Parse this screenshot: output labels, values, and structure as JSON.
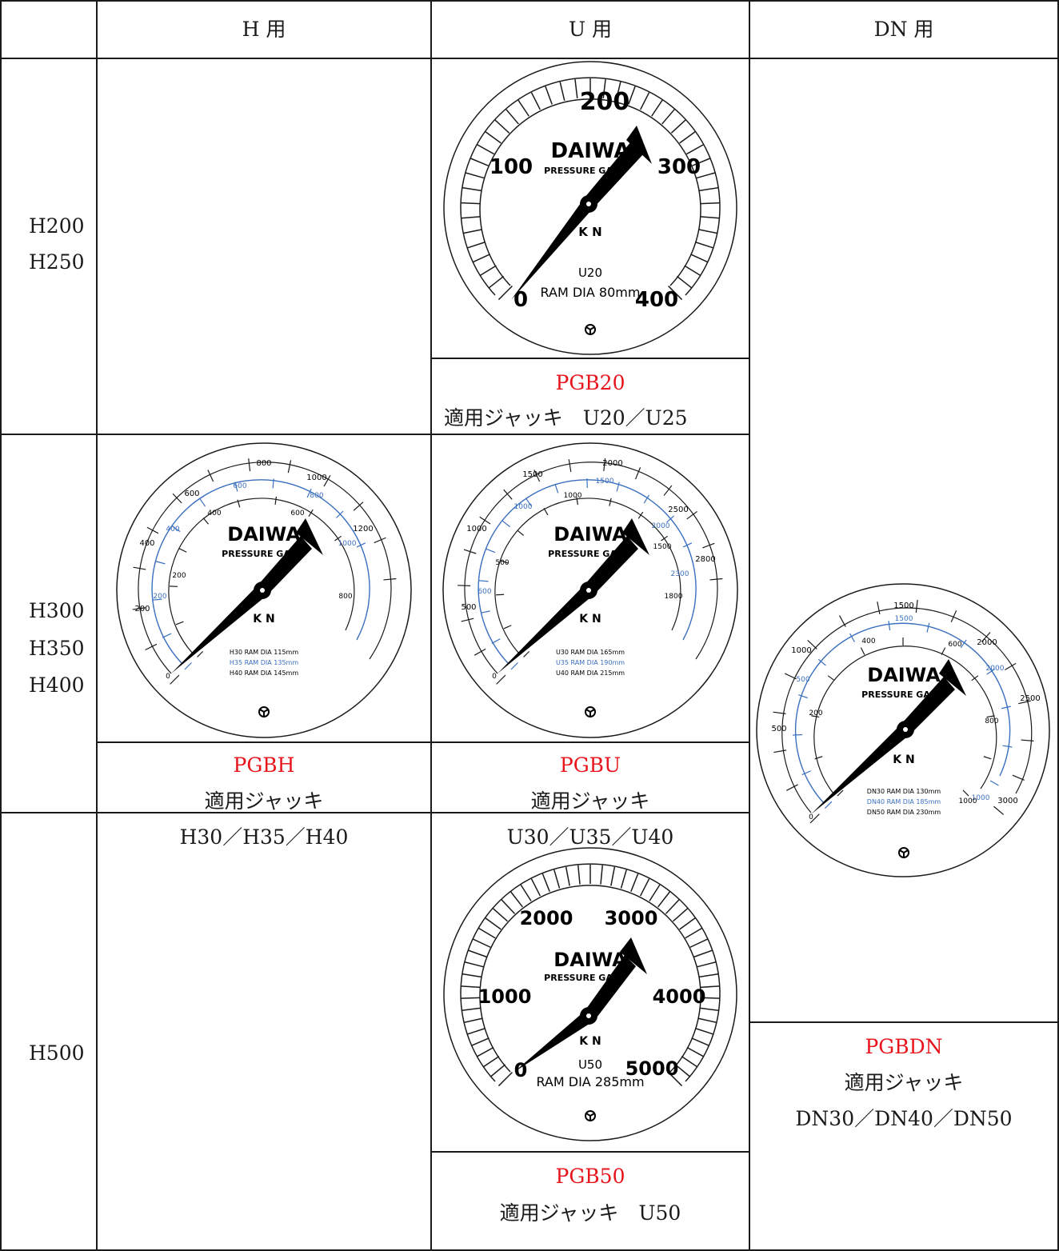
{
  "headers": {
    "h": "H 用",
    "u": "U 用",
    "dn": "DN 用"
  },
  "rows": {
    "r1": [
      "H200",
      "H250"
    ],
    "r2": [
      "H300",
      "H350",
      "H400"
    ],
    "r3": [
      "H500"
    ]
  },
  "colors": {
    "red_label": "#e8141c",
    "blue_scale": "#3a6fbf",
    "line": "#1a1a1a"
  },
  "gauges": {
    "u20": {
      "brand": "DAIWA",
      "subtitle": "PRESSURE GA",
      "unit": "K N",
      "model": "U20",
      "ram": "RAM  DIA  80mm",
      "scale": [
        "0",
        "100",
        "200",
        "300",
        "400"
      ]
    },
    "pgbh": {
      "brand": "DAIWA",
      "subtitle": "PRESSURE GA",
      "unit": "K N",
      "outer_scale": [
        "0",
        "200",
        "400",
        "600",
        "800",
        "1000",
        "1200"
      ],
      "blue_scale": [
        "200",
        "400",
        "600",
        "800",
        "1000"
      ],
      "inner_scale": [
        "200",
        "400",
        "600",
        "800"
      ],
      "ram_lines": [
        "H30  RAM  DIA  115mm",
        "H35  RAM  DIA  135mm",
        "H40  RAM  DIA  145mm"
      ]
    },
    "pgbu": {
      "brand": "DAIWA",
      "subtitle": "PRESSURE GA",
      "unit": "K N",
      "outer_scale": [
        "0",
        "500",
        "1000",
        "1500",
        "2000",
        "2500",
        "2800"
      ],
      "blue_scale": [
        "600",
        "1000",
        "1500",
        "2000",
        "2300"
      ],
      "inner_scale": [
        "500",
        "1000",
        "1500",
        "1800"
      ],
      "ram_lines": [
        "U30  RAM  DIA  165mm",
        "U35  RAM  DIA  190mm",
        "U40  RAM  DIA  215mm"
      ]
    },
    "pgbdn": {
      "brand": "DAIWA",
      "subtitle": "PRESSURE GA",
      "unit": "K N",
      "outer_scale": [
        "0",
        "500",
        "1000",
        "1500",
        "2000",
        "2500",
        "3000"
      ],
      "blue_scale": [
        "500",
        "1000",
        "1500",
        "2000"
      ],
      "inner_scale": [
        "200",
        "400",
        "600",
        "800",
        "1000"
      ],
      "ram_lines": [
        "DN30  RAM  DIA  130mm",
        "DN40  RAM  DIA  185mm",
        "DN50  RAM  DIA  230mm"
      ]
    },
    "u50": {
      "brand": "DAIWA",
      "subtitle": "PRESSURE GA",
      "unit": "K N",
      "model": "U50",
      "ram": "RAM  DIA  285mm",
      "scale": [
        "0",
        "1000",
        "2000",
        "3000",
        "4000",
        "5000"
      ]
    }
  },
  "products": {
    "pgb20": {
      "code": "PGB20",
      "line1": "適用ジャッキ　U20／U25"
    },
    "pgbh": {
      "code": "PGBH",
      "line1": "適用ジャッキ",
      "line2": "H30／H35／H40"
    },
    "pgbu": {
      "code": "PGBU",
      "line1": "適用ジャッキ",
      "line2": "U30／U35／U40"
    },
    "pgbdn": {
      "code": "PGBDN",
      "line1": "適用ジャッキ",
      "line2": "DN30／DN40／DN50"
    },
    "pgb50": {
      "code": "PGB50",
      "line1": "適用ジャッキ　U50"
    }
  }
}
